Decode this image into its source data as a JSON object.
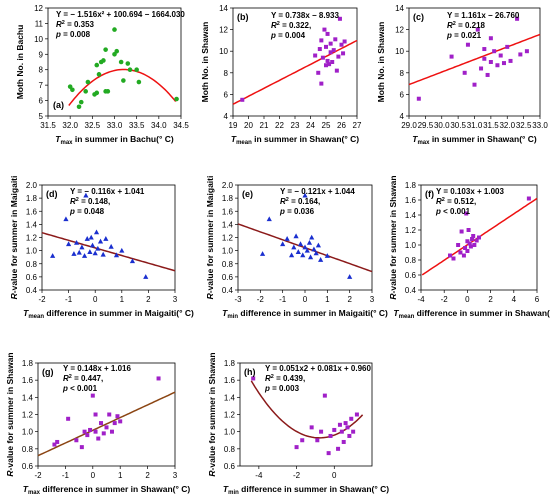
{
  "chart_data": [
    {
      "panel": "(a)",
      "type": "scatter",
      "title": "",
      "xlabel_main": "T",
      "xlabel_sub": "max",
      "xlabel_rest": " in summer in Bachu(° C)",
      "ylabel_plain": "Moth No. in Bachu",
      "xlim": [
        31.5,
        34.5
      ],
      "ylim": [
        5,
        12
      ],
      "xticks": [
        "31.5",
        "32.0",
        "32.5",
        "33.0",
        "33.5",
        "34.0",
        "34.5"
      ],
      "yticks": [
        "5",
        "6",
        "7",
        "8",
        "9",
        "10",
        "11",
        "12"
      ],
      "marker": "circle",
      "point_color": "#22aa22",
      "fit": {
        "kind": "poly2",
        "a": -1.516,
        "b": 100.694,
        "c": -1664.03,
        "range": [
          31.97,
          34.38
        ],
        "color": "#ee1111"
      },
      "eq": {
        "l1": "Y = − 1.516x² + 100.694 − 1664.030",
        "l2a": "R",
        "l2b": "2",
        "l2c": " = 0.353",
        "l3a": "p",
        "l3b": " = 0.008"
      },
      "x": [
        32.0,
        32.05,
        32.2,
        32.25,
        32.35,
        32.4,
        32.55,
        32.6,
        32.6,
        32.65,
        32.7,
        32.75,
        32.8,
        32.8,
        32.85,
        33.0,
        33.0,
        33.05,
        33.15,
        33.2,
        33.3,
        33.35,
        33.5,
        33.55,
        34.4
      ],
      "y": [
        6.9,
        6.7,
        5.6,
        5.9,
        6.6,
        7.2,
        6.4,
        8.3,
        6.5,
        7.7,
        8.5,
        8.6,
        9.3,
        6.6,
        6.6,
        9.0,
        10.6,
        9.2,
        8.5,
        7.3,
        8.4,
        8.0,
        8.0,
        7.2,
        6.1
      ]
    },
    {
      "panel": "(b)",
      "type": "scatter",
      "title": "",
      "xlabel_main": "T",
      "xlabel_sub": "mean",
      "xlabel_rest": " in summer in Shawan(° C)",
      "ylabel_plain": "Moth No. in Shawan",
      "xlim": [
        19,
        27
      ],
      "ylim": [
        4,
        14
      ],
      "xticks": [
        "19",
        "20",
        "21",
        "22",
        "23",
        "24",
        "25",
        "26",
        "27"
      ],
      "yticks": [
        "4",
        "6",
        "8",
        "10",
        "12",
        "14"
      ],
      "marker": "square",
      "point_color": "#a020c8",
      "fit": {
        "kind": "poly1",
        "a": 0.738,
        "b": -8.933,
        "range": [
          19,
          27
        ],
        "color": "#ee1111"
      },
      "eq": {
        "l1": "Y = 0.738x − 8.933",
        "l2a": "R",
        "l2b": "2",
        "l2c": " = 0.322, ",
        "l3a": "p",
        "l3b": " = 0.004"
      },
      "x": [
        19.6,
        24.3,
        24.5,
        24.6,
        24.7,
        24.7,
        24.8,
        24.9,
        25.0,
        25.0,
        25.1,
        25.1,
        25.2,
        25.3,
        25.3,
        25.4,
        25.5,
        25.6,
        25.7,
        25.8,
        25.9,
        26.0,
        26.1,
        26.2
      ],
      "y": [
        5.5,
        9.6,
        8.0,
        10.2,
        7.0,
        11.0,
        9.4,
        12.0,
        8.7,
        10.4,
        9.1,
        11.6,
        8.8,
        9.9,
        10.7,
        9.0,
        10.1,
        11.1,
        8.2,
        9.5,
        13.0,
        10.6,
        9.8,
        10.9
      ]
    },
    {
      "panel": "(c)",
      "type": "scatter",
      "title": "",
      "xlabel_main": "T",
      "xlabel_sub": "max",
      "xlabel_rest": " in summer in Shawan(° C)",
      "ylabel_plain": "Moth No. in Shawan",
      "xlim": [
        29.0,
        33.0
      ],
      "ylim": [
        4,
        14
      ],
      "xticks": [
        "29.0",
        "29.5",
        "30.0",
        "30.5",
        "31.0",
        "31.5",
        "32.0",
        "32.5",
        "33.0"
      ],
      "yticks": [
        "4",
        "6",
        "8",
        "10",
        "12",
        "14"
      ],
      "marker": "square",
      "point_color": "#a020c8",
      "fit": {
        "kind": "poly1",
        "a": 1.161,
        "b": -26.76,
        "range": [
          29.0,
          33.0
        ],
        "color": "#ee1111"
      },
      "eq": {
        "l1": "Y = 1.161x − 26.760",
        "l2a": "R",
        "l2b": "2",
        "l2c": " = 0.218",
        "l3a": "p",
        "l3b": " = 0.021"
      },
      "x": [
        29.3,
        30.3,
        30.7,
        30.8,
        31.0,
        31.1,
        31.2,
        31.3,
        31.3,
        31.4,
        31.5,
        31.5,
        31.6,
        31.7,
        31.8,
        31.9,
        32.0,
        32.1,
        32.3,
        32.4,
        32.6
      ],
      "y": [
        5.6,
        9.5,
        8.0,
        10.6,
        6.9,
        12.0,
        8.4,
        9.3,
        10.2,
        7.8,
        9.0,
        11.2,
        10.0,
        8.7,
        9.6,
        8.9,
        10.4,
        9.1,
        13.0,
        9.7,
        10.0
      ]
    },
    {
      "panel": "(d)",
      "type": "scatter",
      "title": "",
      "xlabel_main": "T",
      "xlabel_sub": "mean",
      "xlabel_rest": " difference in summer in Maigaiti(° C)",
      "ylabel_italic": "R",
      "ylabel_plain": "-value for summer in Maigaiti",
      "xlim": [
        -2,
        3
      ],
      "ylim": [
        0.4,
        2.0
      ],
      "xticks": [
        "-2",
        "-1",
        "0",
        "1",
        "2",
        "3"
      ],
      "yticks": [
        "0.4",
        "0.6",
        "0.8",
        "1.0",
        "1.2",
        "1.4",
        "1.6",
        "1.8",
        "2.0"
      ],
      "marker": "triangle",
      "point_color": "#1a2fcf",
      "fit": {
        "kind": "poly1",
        "a": -0.116,
        "b": 1.041,
        "range": [
          -2,
          3
        ],
        "color": "#8b1a1a"
      },
      "eq": {
        "l1": "Y = − 0.116x + 1.041",
        "l2a": "R",
        "l2b": "2",
        "l2c": " = 0.148, ",
        "l3a": "p",
        "l3b": " = 0.048"
      },
      "x": [
        -1.6,
        -1.1,
        -1.0,
        -0.8,
        -0.7,
        -0.6,
        -0.5,
        -0.4,
        -0.35,
        -0.3,
        -0.2,
        -0.15,
        -0.1,
        0.0,
        0.05,
        0.1,
        0.2,
        0.3,
        0.4,
        0.6,
        0.8,
        1.0,
        1.4,
        1.9
      ],
      "y": [
        0.92,
        1.48,
        1.1,
        0.95,
        1.12,
        0.97,
        1.05,
        0.92,
        1.84,
        1.18,
        0.98,
        1.2,
        1.08,
        0.96,
        1.28,
        1.03,
        1.14,
        0.94,
        1.18,
        1.06,
        0.93,
        1.0,
        0.84,
        0.6
      ]
    },
    {
      "panel": "(e)",
      "type": "scatter",
      "title": "",
      "xlabel_main": "T",
      "xlabel_sub": "min",
      "xlabel_rest": " difference in summer in Maigaiti(° C)",
      "ylabel_italic": "R",
      "ylabel_plain": "-value for summer in Maigaiti",
      "xlim": [
        -3,
        3
      ],
      "ylim": [
        0.4,
        2.0
      ],
      "xticks": [
        "-3",
        "-2",
        "-1",
        "0",
        "1",
        "2",
        "3"
      ],
      "yticks": [
        "0.4",
        "0.6",
        "0.8",
        "1.0",
        "1.2",
        "1.4",
        "1.6",
        "1.8",
        "2.0"
      ],
      "marker": "triangle",
      "point_color": "#1a2fcf",
      "fit": {
        "kind": "poly1",
        "a": -0.121,
        "b": 1.044,
        "range": [
          -3,
          3
        ],
        "color": "#8b1a1a"
      },
      "eq": {
        "l1": "Y = − 0.121x + 1.044",
        "l2a": "R",
        "l2b": "2",
        "l2c": " = 0.164, ",
        "l3a": "p",
        "l3b": " = 0.036"
      },
      "x": [
        -1.9,
        -1.6,
        -1.0,
        -0.8,
        -0.6,
        -0.5,
        -0.4,
        -0.3,
        -0.2,
        -0.1,
        0.0,
        0.0,
        0.1,
        0.2,
        0.25,
        0.3,
        0.4,
        0.5,
        0.6,
        0.7,
        1.0,
        2.0
      ],
      "y": [
        0.95,
        1.48,
        1.1,
        1.18,
        0.93,
        1.05,
        1.22,
        0.98,
        1.1,
        0.93,
        1.84,
        1.05,
        1.0,
        1.12,
        0.9,
        1.2,
        1.02,
        0.96,
        1.08,
        0.86,
        0.92,
        0.6
      ]
    },
    {
      "panel": "(f)",
      "type": "scatter",
      "title": "",
      "xlabel_main": "T",
      "xlabel_sub": "mean",
      "xlabel_rest": " difference in summer in Shawan(° C)",
      "ylabel_italic": "R",
      "ylabel_plain": "-value for summer in Shawan",
      "xlim": [
        -4,
        6
      ],
      "ylim": [
        0.4,
        1.8
      ],
      "xticks": [
        "-4",
        "-2",
        "0",
        "2",
        "4",
        "6"
      ],
      "yticks": [
        "0.4",
        "0.6",
        "0.8",
        "1.0",
        "1.2",
        "1.4",
        "1.6",
        "1.8"
      ],
      "marker": "square",
      "point_color": "#a020c8",
      "fit": {
        "kind": "poly1",
        "a": 0.103,
        "b": 1.003,
        "range": [
          -3.9,
          6
        ],
        "color": "#ee1111"
      },
      "eq": {
        "l1": "Y = 0.103x + 1.003",
        "l2a": "R",
        "l2b": "2",
        "l2c": " = 0.512, ",
        "l3a": "p",
        "l3b": " < 0.001"
      },
      "x": [
        -1.5,
        -1.2,
        -0.8,
        -0.6,
        -0.5,
        -0.3,
        -0.2,
        -0.1,
        0.0,
        0.0,
        0.1,
        0.2,
        0.3,
        0.4,
        0.5,
        0.6,
        0.8,
        1.0,
        5.3
      ],
      "y": [
        0.86,
        0.82,
        1.0,
        0.9,
        1.18,
        0.86,
        0.96,
        1.42,
        0.92,
        1.05,
        1.2,
        1.02,
        0.98,
        1.08,
        1.12,
        1.0,
        1.06,
        1.1,
        1.62
      ]
    },
    {
      "panel": "(g)",
      "type": "scatter",
      "title": "",
      "xlabel_main": "T",
      "xlabel_sub": "max",
      "xlabel_rest": " difference in summer in Shawan(° C)",
      "ylabel_italic": "R",
      "ylabel_plain": "-value for summer in Shawan",
      "xlim": [
        -2,
        3
      ],
      "ylim": [
        0.6,
        1.8
      ],
      "xticks": [
        "-2",
        "-1",
        "0",
        "1",
        "2",
        "3"
      ],
      "yticks": [
        "0.6",
        "0.8",
        "1.0",
        "1.2",
        "1.4",
        "1.6",
        "1.8"
      ],
      "marker": "square",
      "point_color": "#a020c8",
      "fit": {
        "kind": "poly1",
        "a": 0.148,
        "b": 1.016,
        "range": [
          -2,
          3
        ],
        "color": "#8b4513"
      },
      "eq": {
        "l1": "Y = 0.148x + 1.016",
        "l2a": "R",
        "l2b": "2",
        "l2c": " = 0.447, ",
        "l3a": "p",
        "l3b": " < 0.001"
      },
      "x": [
        -1.4,
        -1.3,
        -0.9,
        -0.6,
        -0.4,
        -0.3,
        -0.2,
        -0.1,
        0.0,
        0.1,
        0.1,
        0.2,
        0.3,
        0.4,
        0.5,
        0.6,
        0.7,
        0.8,
        0.9,
        1.0,
        2.4
      ],
      "y": [
        0.85,
        0.88,
        1.15,
        0.9,
        0.82,
        1.0,
        0.96,
        1.02,
        1.42,
        1.0,
        1.2,
        0.92,
        1.1,
        0.98,
        1.05,
        1.2,
        1.0,
        1.1,
        1.18,
        1.12,
        1.62
      ]
    },
    {
      "panel": "(h)",
      "type": "scatter",
      "title": "",
      "xlabel_main": "T",
      "xlabel_sub": "min",
      "xlabel_rest": " difference in summer in Shawan(° C)",
      "ylabel_italic": "R",
      "ylabel_plain": "-value for summer in Shawan",
      "xlim": [
        -5,
        2
      ],
      "ylim": [
        0.6,
        1.8
      ],
      "xticks": [
        "-4",
        "-2",
        "0"
      ],
      "xtick_values": [
        -4,
        -2,
        0
      ],
      "yticks": [
        "0.6",
        "0.8",
        "1.0",
        "1.2",
        "1.4",
        "1.6",
        "1.8"
      ],
      "marker": "square",
      "point_color": "#a020c8",
      "fit": {
        "kind": "poly2",
        "a": 0.051,
        "b": 0.081,
        "c": 0.96,
        "range": [
          -4.4,
          1.5
        ],
        "color": "#8b1a1a"
      },
      "eq": {
        "l1": "Y = 0.051x2 + 0.081x + 0.960",
        "l2a": "R",
        "l2b": "2",
        "l2c": " = 0.439, ",
        "l3a": "p",
        "l3b": " = 0.003"
      },
      "x": [
        -4.3,
        -2.0,
        -1.7,
        -1.2,
        -0.9,
        -0.7,
        -0.5,
        -0.3,
        -0.2,
        0.0,
        0.2,
        0.3,
        0.4,
        0.5,
        0.6,
        0.7,
        0.8,
        0.9,
        1.0,
        1.2
      ],
      "y": [
        1.62,
        0.82,
        0.9,
        1.05,
        0.9,
        1.0,
        1.42,
        0.75,
        0.95,
        1.02,
        0.8,
        1.08,
        1.0,
        0.88,
        1.1,
        1.05,
        0.95,
        1.15,
        1.0,
        1.2
      ]
    }
  ]
}
